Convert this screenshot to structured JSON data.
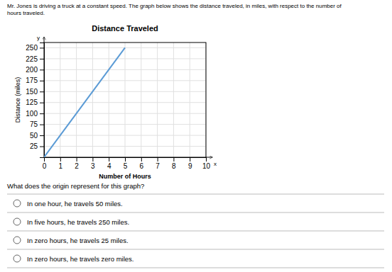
{
  "description": [
    "Mr. Jones is driving a truck at a constant speed. The graph below shows the distance traveled, in miles, with respect to the number of",
    "hours traveled."
  ],
  "question": "What does the origin represent for this graph?",
  "options": [
    "In one hour, he travels 50 miles.",
    "In five hours, he travels 250 miles.",
    "In zero hours, he travels 25 miles.",
    "In zero hours, he travels zero miles."
  ],
  "chart_data": {
    "type": "line",
    "title": "Distance Traveled",
    "xlabel": "Number of Hours",
    "ylabel": "Distance (miles)",
    "annotations": [
      "y",
      "x"
    ],
    "x": [
      0,
      5
    ],
    "values": [
      0,
      250
    ],
    "color": "#5b9bd5",
    "xlim": [
      0,
      10
    ],
    "ylim": [
      0,
      262
    ],
    "xticks": [
      0,
      1,
      2,
      3,
      4,
      5,
      6,
      7,
      8,
      9,
      10
    ],
    "yticks": [
      25,
      50,
      75,
      100,
      125,
      150,
      175,
      200,
      225,
      250
    ],
    "grid": true
  }
}
